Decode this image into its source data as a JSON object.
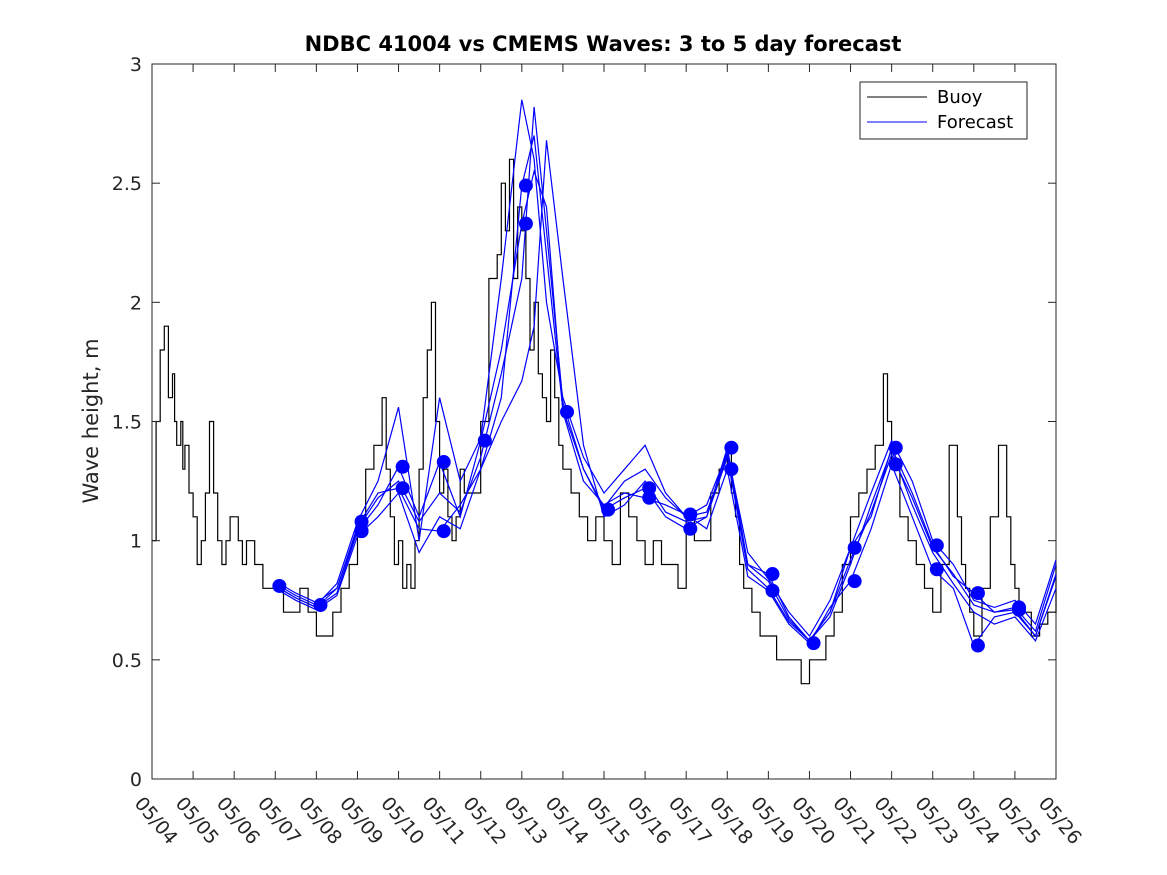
{
  "chart_data": {
    "type": "line",
    "title": "NDBC 41004 vs CMEMS Waves: 3 to 5 day forecast",
    "xlabel": "",
    "ylabel": "Wave height, m",
    "x_unit": "day of May",
    "xlim": [
      4,
      26
    ],
    "ylim": [
      0,
      3
    ],
    "x_ticks": [
      4,
      5,
      6,
      7,
      8,
      9,
      10,
      11,
      12,
      13,
      14,
      15,
      16,
      17,
      18,
      19,
      20,
      21,
      22,
      23,
      24,
      25,
      26
    ],
    "x_tick_labels": [
      "05/04",
      "05/05",
      "05/06",
      "05/07",
      "05/08",
      "05/09",
      "05/10",
      "05/11",
      "05/12",
      "05/13",
      "05/14",
      "05/15",
      "05/16",
      "05/17",
      "05/18",
      "05/19",
      "05/20",
      "05/21",
      "05/22",
      "05/23",
      "05/24",
      "05/25",
      "05/26"
    ],
    "y_ticks": [
      0,
      0.5,
      1,
      1.5,
      2,
      2.5,
      3
    ],
    "y_tick_labels": [
      "0",
      "0.5",
      "1",
      "1.5",
      "2",
      "2.5",
      "3"
    ],
    "grid": false,
    "legend_position": "top-right",
    "legend": [
      {
        "label": "Buoy",
        "color": "#000000"
      },
      {
        "label": "Forecast",
        "color": "#0000ff"
      }
    ],
    "buoy": {
      "name": "Buoy",
      "color": "#000000",
      "x": [
        4.0,
        4.1,
        4.2,
        4.3,
        4.4,
        4.5,
        4.55,
        4.6,
        4.7,
        4.75,
        4.8,
        4.9,
        5.0,
        5.1,
        5.2,
        5.3,
        5.4,
        5.5,
        5.6,
        5.7,
        5.8,
        5.9,
        6.0,
        6.1,
        6.2,
        6.3,
        6.4,
        6.5,
        6.6,
        6.7,
        6.8,
        6.9,
        7.0,
        7.2,
        7.4,
        7.6,
        7.8,
        8.0,
        8.2,
        8.4,
        8.6,
        8.8,
        9.0,
        9.2,
        9.4,
        9.6,
        9.7,
        9.8,
        9.9,
        10.0,
        10.1,
        10.2,
        10.3,
        10.4,
        10.5,
        10.6,
        10.7,
        10.8,
        10.9,
        11.0,
        11.1,
        11.2,
        11.3,
        11.4,
        11.5,
        11.6,
        11.8,
        12.0,
        12.2,
        12.4,
        12.5,
        12.6,
        12.7,
        12.8,
        12.9,
        13.0,
        13.1,
        13.2,
        13.3,
        13.4,
        13.5,
        13.6,
        13.7,
        13.8,
        13.9,
        14.0,
        14.2,
        14.4,
        14.6,
        14.8,
        15.0,
        15.2,
        15.4,
        15.6,
        15.8,
        16.0,
        16.2,
        16.4,
        16.6,
        16.8,
        17.0,
        17.2,
        17.4,
        17.6,
        17.8,
        18.0,
        18.1,
        18.2,
        18.3,
        18.4,
        18.6,
        18.8,
        19.0,
        19.2,
        19.4,
        19.6,
        19.8,
        20.0,
        20.2,
        20.4,
        20.6,
        20.8,
        21.0,
        21.2,
        21.4,
        21.6,
        21.8,
        21.9,
        22.0,
        22.2,
        22.4,
        22.6,
        22.8,
        23.0,
        23.2,
        23.4,
        23.6,
        23.7,
        23.8,
        23.9,
        24.0,
        24.2,
        24.4,
        24.6,
        24.8,
        24.9,
        25.0,
        25.1,
        25.2,
        25.4,
        25.6,
        25.8,
        26.0
      ],
      "y": [
        1.0,
        1.5,
        1.8,
        1.9,
        1.6,
        1.7,
        1.5,
        1.4,
        1.5,
        1.3,
        1.4,
        1.2,
        1.1,
        0.9,
        1.0,
        1.2,
        1.5,
        1.2,
        1.0,
        0.9,
        1.0,
        1.1,
        1.1,
        1.0,
        0.9,
        1.0,
        1.0,
        0.9,
        0.9,
        0.8,
        0.8,
        0.8,
        0.8,
        0.7,
        0.7,
        0.8,
        0.7,
        0.6,
        0.6,
        0.7,
        0.8,
        0.9,
        1.1,
        1.3,
        1.4,
        1.6,
        1.3,
        1.1,
        0.9,
        1.0,
        0.8,
        0.9,
        0.8,
        1.0,
        1.3,
        1.6,
        1.8,
        2.0,
        1.5,
        1.2,
        1.3,
        1.1,
        1.0,
        1.1,
        1.3,
        1.2,
        1.2,
        1.5,
        2.1,
        2.2,
        2.5,
        2.3,
        2.6,
        2.1,
        2.4,
        2.3,
        2.1,
        1.8,
        2.0,
        1.7,
        1.6,
        1.5,
        1.8,
        1.6,
        1.4,
        1.3,
        1.2,
        1.1,
        1.0,
        1.1,
        1.0,
        0.9,
        1.2,
        1.1,
        1.0,
        0.9,
        1.0,
        0.9,
        0.9,
        0.8,
        1.1,
        1.0,
        1.0,
        1.2,
        1.3,
        1.4,
        1.2,
        1.1,
        0.9,
        0.8,
        0.7,
        0.6,
        0.6,
        0.5,
        0.5,
        0.5,
        0.4,
        0.5,
        0.5,
        0.6,
        0.7,
        0.9,
        1.1,
        1.2,
        1.3,
        1.4,
        1.7,
        1.5,
        1.3,
        1.1,
        1.0,
        0.9,
        0.8,
        0.7,
        0.9,
        1.4,
        1.1,
        0.9,
        0.8,
        0.7,
        0.6,
        0.8,
        1.1,
        1.4,
        1.1,
        0.9,
        0.8,
        0.7,
        0.7,
        0.6,
        0.65,
        0.7,
        0.9
      ]
    },
    "forecast_series": [
      {
        "name": "Forecast",
        "color": "#0000ff",
        "x": [
          7.1,
          7.5,
          8.0,
          8.5,
          9.0,
          9.5,
          10.0,
          10.5,
          11.0,
          11.5,
          12.0,
          12.5,
          13.0,
          13.3,
          13.6,
          14.0,
          14.5,
          15.0,
          15.5,
          16.0,
          16.5,
          17.0,
          17.5,
          18.0,
          18.5,
          19.0,
          19.5,
          20.0,
          20.5,
          21.0,
          21.5,
          22.0,
          22.5,
          23.0,
          23.5,
          24.0,
          24.5,
          25.0,
          25.5,
          26.0
        ],
        "y": [
          0.82,
          0.78,
          0.74,
          0.8,
          1.06,
          1.2,
          1.22,
          1.05,
          1.04,
          1.15,
          1.3,
          1.6,
          2.49,
          2.7,
          2.2,
          1.55,
          1.3,
          1.13,
          1.18,
          1.22,
          1.1,
          1.05,
          1.1,
          1.39,
          0.9,
          0.86,
          0.68,
          0.58,
          0.7,
          0.97,
          1.1,
          1.39,
          1.2,
          0.98,
          0.85,
          0.78,
          0.7,
          0.72,
          0.62,
          0.9
        ]
      },
      {
        "name": "Forecast",
        "color": "#0000ff",
        "x": [
          7.1,
          7.5,
          8.0,
          8.5,
          9.0,
          9.5,
          10.0,
          10.5,
          11.0,
          11.5,
          12.0,
          12.5,
          13.0,
          13.3,
          13.6,
          14.0,
          14.5,
          15.0,
          15.5,
          16.0,
          16.5,
          17.0,
          17.5,
          18.0,
          18.5,
          19.0,
          19.5,
          20.0,
          20.5,
          21.0,
          21.5,
          22.0,
          22.5,
          23.0,
          23.5,
          24.0,
          24.5,
          25.0,
          25.5,
          26.0
        ],
        "y": [
          0.8,
          0.76,
          0.72,
          0.78,
          1.04,
          1.15,
          1.31,
          1.1,
          1.33,
          1.1,
          1.42,
          1.8,
          2.33,
          2.55,
          2.4,
          1.54,
          1.25,
          1.15,
          1.2,
          1.18,
          1.15,
          1.11,
          1.05,
          1.3,
          0.85,
          0.79,
          0.65,
          0.57,
          0.72,
          0.83,
          1.05,
          1.32,
          1.1,
          0.88,
          0.8,
          0.56,
          0.68,
          0.7,
          0.6,
          0.85
        ]
      },
      {
        "name": "Forecast",
        "color": "#0000ff",
        "x": [
          7.1,
          7.5,
          8.0,
          8.5,
          9.0,
          9.5,
          10.0,
          10.5,
          11.0,
          11.5,
          12.0,
          12.5,
          13.0,
          13.3,
          13.6,
          14.0,
          14.5,
          15.0,
          15.5,
          16.0,
          16.5,
          17.0,
          17.5,
          18.0,
          18.5,
          19.0,
          19.5,
          20.0,
          20.5,
          21.0,
          21.5,
          22.0,
          22.5,
          23.0,
          23.5,
          24.0,
          24.5,
          25.0,
          25.5,
          26.0
        ],
        "y": [
          0.81,
          0.77,
          0.73,
          0.82,
          1.08,
          1.25,
          1.56,
          1.0,
          1.6,
          1.25,
          1.43,
          2.1,
          2.85,
          2.6,
          2.0,
          1.6,
          1.35,
          1.2,
          1.3,
          1.4,
          1.2,
          1.1,
          1.15,
          1.37,
          0.95,
          0.84,
          0.7,
          0.6,
          0.75,
          0.97,
          1.2,
          1.42,
          1.25,
          1.0,
          0.9,
          0.75,
          0.72,
          0.75,
          0.65,
          0.92
        ]
      },
      {
        "name": "Forecast",
        "color": "#0000ff",
        "x": [
          7.1,
          7.5,
          8.0,
          8.5,
          9.0,
          9.5,
          10.0,
          10.5,
          11.0,
          11.5,
          12.0,
          12.5,
          13.0,
          13.3,
          13.6,
          14.0,
          14.5,
          15.0,
          15.5,
          16.0,
          16.5,
          17.0,
          17.5,
          18.0,
          18.5,
          19.0,
          19.5,
          20.0,
          20.5,
          21.0,
          21.5,
          22.0,
          22.5,
          23.0,
          23.5,
          24.0,
          24.5,
          25.0,
          25.5,
          26.0
        ],
        "y": [
          0.79,
          0.75,
          0.71,
          0.77,
          1.02,
          1.1,
          1.2,
          0.95,
          1.1,
          1.05,
          1.3,
          1.5,
          1.67,
          1.9,
          2.68,
          2.1,
          1.4,
          1.1,
          1.15,
          1.25,
          1.12,
          1.08,
          1.1,
          1.35,
          0.88,
          0.8,
          0.66,
          0.58,
          0.68,
          0.9,
          1.15,
          1.38,
          1.15,
          0.95,
          0.82,
          0.7,
          0.65,
          0.68,
          0.58,
          0.8
        ]
      },
      {
        "name": "Forecast",
        "color": "#0000ff",
        "x": [
          7.1,
          7.5,
          8.0,
          8.5,
          9.0,
          9.5,
          10.0,
          10.5,
          11.0,
          11.5,
          12.0,
          12.5,
          13.0,
          13.3,
          13.6,
          14.0,
          14.5,
          15.0,
          15.5,
          16.0,
          16.5,
          17.0,
          17.5,
          18.0,
          18.5,
          19.0,
          19.5,
          20.0,
          20.5,
          21.0,
          21.5,
          22.0,
          22.5,
          23.0,
          23.5,
          24.0,
          24.5,
          25.0,
          25.5,
          26.0
        ],
        "y": [
          0.8,
          0.76,
          0.72,
          0.8,
          1.05,
          1.18,
          1.25,
          1.08,
          1.2,
          1.12,
          1.35,
          1.7,
          2.1,
          2.82,
          2.3,
          1.58,
          1.3,
          1.14,
          1.25,
          1.3,
          1.18,
          1.1,
          1.12,
          1.36,
          0.9,
          0.83,
          0.67,
          0.58,
          0.7,
          0.92,
          1.12,
          1.36,
          1.18,
          0.97,
          0.86,
          0.73,
          0.7,
          0.71,
          0.6,
          0.86
        ]
      }
    ],
    "forecast_markers": {
      "x": [
        7.1,
        8.1,
        9.1,
        9.1,
        9.1,
        10.1,
        10.1,
        11.1,
        11.1,
        12.1,
        13.1,
        13.1,
        14.1,
        15.1,
        16.1,
        16.1,
        17.1,
        17.1,
        18.1,
        18.1,
        19.1,
        19.1,
        20.1,
        21.1,
        21.1,
        22.1,
        22.1,
        23.1,
        23.1,
        24.1,
        24.1,
        25.1,
        25.1
      ],
      "y": [
        0.81,
        0.73,
        1.08,
        1.04,
        1.04,
        1.31,
        1.22,
        1.33,
        1.04,
        1.42,
        2.49,
        2.33,
        1.54,
        1.13,
        1.22,
        1.18,
        1.11,
        1.05,
        1.39,
        1.3,
        0.86,
        0.79,
        0.57,
        0.97,
        0.83,
        1.39,
        1.32,
        0.98,
        0.88,
        0.78,
        0.56,
        0.72,
        0.71
      ]
    }
  }
}
